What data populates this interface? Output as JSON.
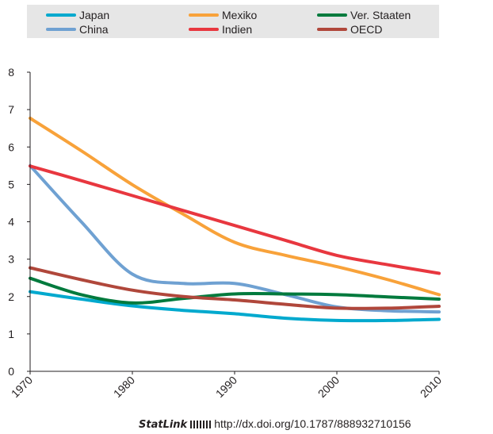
{
  "chart_data": {
    "type": "line",
    "title": "",
    "xlabel": "",
    "ylabel": "",
    "x": [
      1970,
      1975,
      1980,
      1985,
      1990,
      1995,
      2000,
      2005,
      2010
    ],
    "xticks": [
      "1970",
      "1980",
      "1990",
      "2000",
      "2010"
    ],
    "yticks": [
      "0",
      "1",
      "2",
      "3",
      "4",
      "5",
      "6",
      "7",
      "8"
    ],
    "xlim": [
      1970,
      2010
    ],
    "ylim": [
      0,
      8
    ],
    "grid": false,
    "legend_position": "top",
    "series": [
      {
        "name": "Japan",
        "color": "#00a9ce",
        "values": [
          2.13,
          1.93,
          1.75,
          1.63,
          1.54,
          1.42,
          1.36,
          1.36,
          1.39
        ]
      },
      {
        "name": "China",
        "color": "#6fa1d2",
        "values": [
          5.5,
          4.0,
          2.6,
          2.35,
          2.35,
          2.05,
          1.72,
          1.62,
          1.59
        ]
      },
      {
        "name": "Mexiko",
        "color": "#f8a23a",
        "values": [
          6.77,
          5.9,
          4.99,
          4.2,
          3.45,
          3.1,
          2.8,
          2.45,
          2.05
        ]
      },
      {
        "name": "Indien",
        "color": "#e8373f",
        "values": [
          5.49,
          5.1,
          4.7,
          4.3,
          3.9,
          3.5,
          3.1,
          2.85,
          2.62
        ]
      },
      {
        "name": "Ver. Staaten",
        "color": "#007a3d",
        "values": [
          2.49,
          2.05,
          1.83,
          1.95,
          2.07,
          2.07,
          2.05,
          1.99,
          1.93
        ]
      },
      {
        "name": "OECD",
        "color": "#b0473b",
        "values": [
          2.77,
          2.45,
          2.17,
          2.0,
          1.91,
          1.79,
          1.69,
          1.69,
          1.74
        ]
      }
    ]
  },
  "legend": {
    "items": [
      {
        "label": "Japan",
        "color": "#00a9ce"
      },
      {
        "label": "Mexiko",
        "color": "#f8a23a"
      },
      {
        "label": "Ver. Staaten",
        "color": "#007a3d"
      },
      {
        "label": "China",
        "color": "#6fa1d2"
      },
      {
        "label": "Indien",
        "color": "#e8373f"
      },
      {
        "label": "OECD",
        "color": "#b0473b"
      }
    ]
  },
  "statlink": {
    "brand": "StatLink",
    "url": "http://dx.doi.org/10.1787/888932710156"
  }
}
